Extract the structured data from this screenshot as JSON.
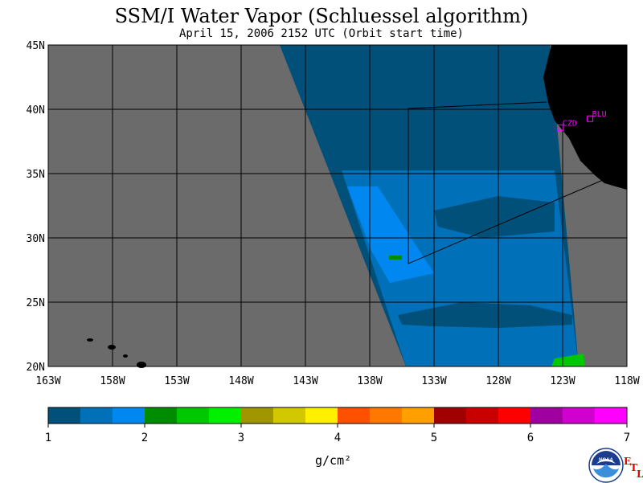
{
  "header": {
    "title": "SSM/I Water Vapor (Schluessel algorithm)",
    "subtitle": "April 15, 2006  2152 UTC  (Orbit start time)"
  },
  "map": {
    "lat_labels": [
      "45N",
      "40N",
      "35N",
      "30N",
      "25N",
      "20N"
    ],
    "lon_labels": [
      "163W",
      "158W",
      "153W",
      "148W",
      "143W",
      "138W",
      "133W",
      "128W",
      "123W",
      "118W"
    ],
    "extent": {
      "lon_min": -163,
      "lon_max": -118,
      "lat_min": 20,
      "lat_max": 45
    },
    "sites": [
      {
        "code": "CZD",
        "lat": 38.6,
        "lon": -123.2
      },
      {
        "code": "BLU",
        "lat": 39.3,
        "lon": -120.9
      }
    ],
    "colors": {
      "no_data": "#6b6b6b",
      "land": "#000000",
      "grid": "#000000",
      "site": "#ff00ff"
    }
  },
  "colorbar": {
    "tick_labels": [
      "1",
      "2",
      "3",
      "4",
      "5",
      "6",
      "7"
    ],
    "units": "g/cm²",
    "colors": [
      "#00507a",
      "#0070b8",
      "#0088f0",
      "#008c00",
      "#00c800",
      "#00f000",
      "#a09600",
      "#d2c800",
      "#fff000",
      "#ff5000",
      "#ff7800",
      "#ffa000",
      "#a00000",
      "#c80000",
      "#ff0000",
      "#a000a0",
      "#d000d0",
      "#ff00ff"
    ]
  },
  "logo": {
    "agency": "NOAA",
    "lab_letters": [
      "E",
      "T",
      "L"
    ]
  }
}
